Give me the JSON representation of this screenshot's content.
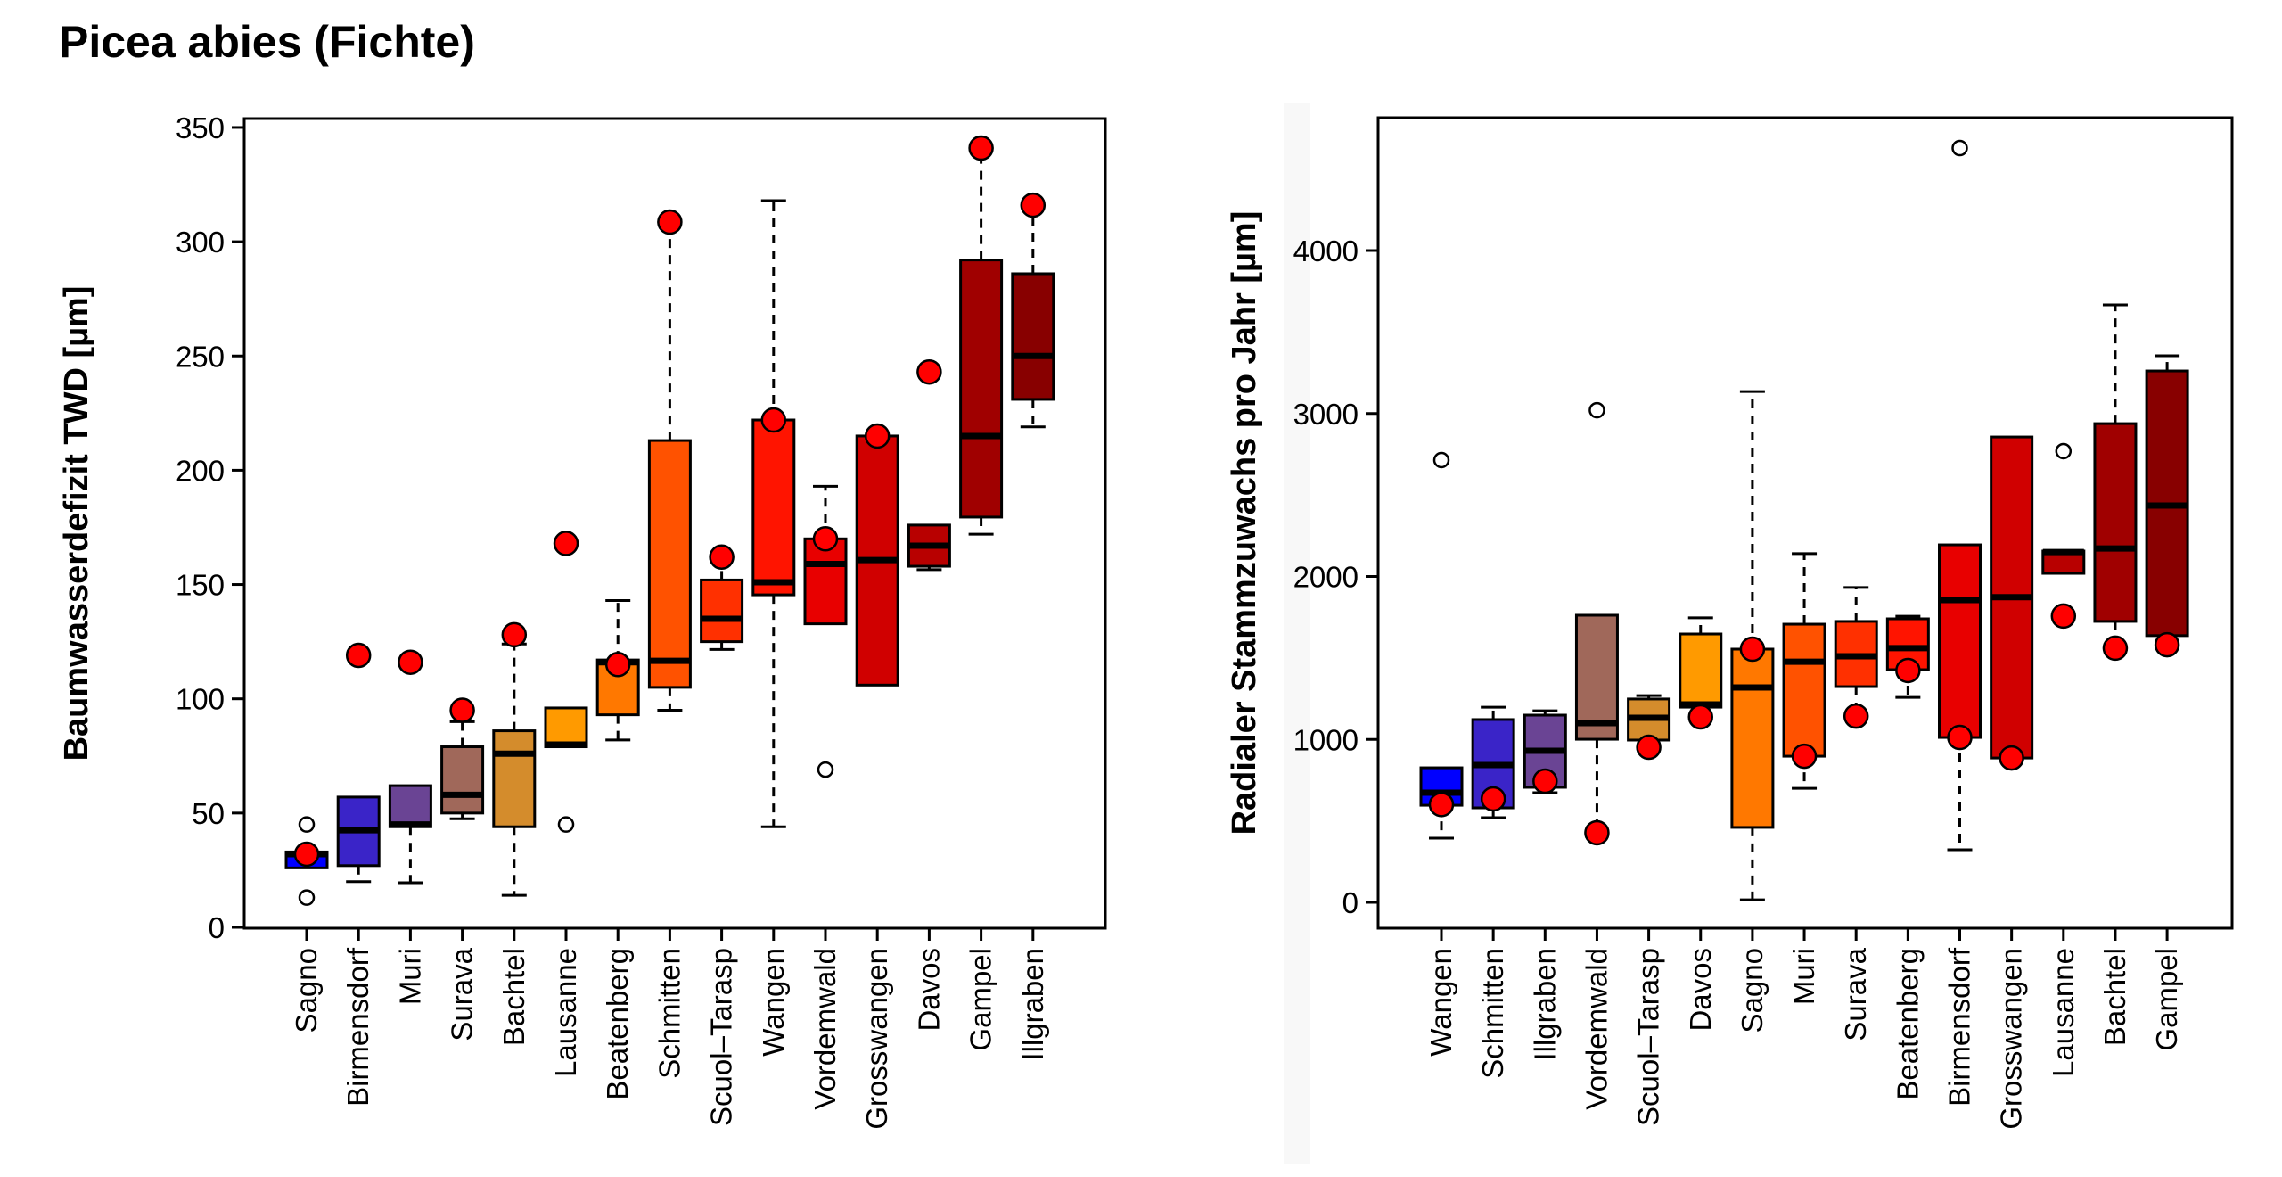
{
  "page_title": "Picea abies (Fichte)",
  "chart_data": [
    {
      "type": "boxplot",
      "title": "",
      "xlabel": "",
      "ylabel": "Baumwasserdefizit TWD [µm]",
      "ylim": [
        0,
        350
      ],
      "yticks": [
        0,
        50,
        100,
        150,
        200,
        250,
        300,
        350
      ],
      "grid": false,
      "legend": "none",
      "categories": [
        "Sagno",
        "Birmensdorf",
        "Muri",
        "Surava",
        "Bachtel",
        "Lausanne",
        "Beatenberg",
        "Schmitten",
        "Scuol–Tarasp",
        "Wangen",
        "Vordemwald",
        "Grosswangen",
        "Davos",
        "Gampel",
        "Illgraben"
      ],
      "colors": [
        "#0000ff",
        "#3a24c8",
        "#6a4494",
        "#a0685a",
        "#d48c2c",
        "#ff9a00",
        "#ff7800",
        "#ff5200",
        "#ff3000",
        "#ff1400",
        "#e80000",
        "#d00000",
        "#b80000",
        "#a00000",
        "#880000"
      ],
      "boxes": [
        {
          "whisker_low": 26,
          "q1": 26,
          "median": 32,
          "q3": 33,
          "whisker_high": 33,
          "outliers": [
            13,
            45
          ],
          "highlight": 32
        },
        {
          "whisker_low": 20,
          "q1": 27,
          "median": 42.5,
          "q3": 57,
          "whisker_high": 57,
          "outliers": [],
          "highlight": 119
        },
        {
          "whisker_low": 19.5,
          "q1": 44,
          "median": 45,
          "q3": 62,
          "whisker_high": 62,
          "outliers": [],
          "highlight": 116
        },
        {
          "whisker_low": 47.5,
          "q1": 50,
          "median": 58,
          "q3": 79,
          "whisker_high": 90,
          "outliers": [],
          "highlight": 95
        },
        {
          "whisker_low": 14,
          "q1": 44,
          "median": 76,
          "q3": 86,
          "whisker_high": 124,
          "outliers": [],
          "highlight": 128
        },
        {
          "whisker_low": 79,
          "q1": 79,
          "median": 80,
          "q3": 96,
          "whisker_high": 96,
          "outliers": [
            45
          ],
          "highlight": 168
        },
        {
          "whisker_low": 82,
          "q1": 93,
          "median": 116,
          "q3": 117,
          "whisker_high": 143,
          "outliers": [],
          "highlight": 115
        },
        {
          "whisker_low": 95,
          "q1": 105,
          "median": 116.6,
          "q3": 213,
          "whisker_high": 308.6,
          "outliers": [],
          "highlight": 308.6
        },
        {
          "whisker_low": 121.6,
          "q1": 125,
          "median": 135,
          "q3": 152,
          "whisker_high": 162,
          "outliers": [],
          "highlight": 162
        },
        {
          "whisker_low": 44,
          "q1": 145.5,
          "median": 151,
          "q3": 222,
          "whisker_high": 318,
          "outliers": [],
          "highlight": 222
        },
        {
          "whisker_low": 132.8,
          "q1": 132.8,
          "median": 159,
          "q3": 170,
          "whisker_high": 193,
          "outliers": [
            69
          ],
          "highlight": 170
        },
        {
          "whisker_low": 106,
          "q1": 106,
          "median": 160.7,
          "q3": 215,
          "whisker_high": 215,
          "outliers": [],
          "highlight": 215
        },
        {
          "whisker_low": 156.5,
          "q1": 158,
          "median": 167,
          "q3": 176,
          "whisker_high": 176,
          "outliers": [],
          "highlight": 243
        },
        {
          "whisker_low": 172,
          "q1": 179.5,
          "median": 215,
          "q3": 292,
          "whisker_high": 341,
          "outliers": [],
          "highlight": 341
        },
        {
          "whisker_low": 219,
          "q1": 231,
          "median": 250,
          "q3": 286,
          "whisker_high": 316,
          "outliers": [],
          "highlight": 316
        }
      ]
    },
    {
      "type": "boxplot",
      "title": "",
      "xlabel": "",
      "ylabel": "Radialer Stammzuwachs pro Jahr [µm]",
      "ylim": [
        -150,
        4830
      ],
      "yticks": [
        0,
        1000,
        2000,
        3000,
        4000
      ],
      "grid": false,
      "legend": "none",
      "categories": [
        "Wangen",
        "Schmitten",
        "Illgraben",
        "Vordemwald",
        "Scuol–Tarasp",
        "Davos",
        "Sagno",
        "Muri",
        "Surava",
        "Beatenberg",
        "Birmensdorf",
        "Grosswangen",
        "Lausanne",
        "Bachtel",
        "Gampel"
      ],
      "colors": [
        "#0000ff",
        "#3a24c8",
        "#6a4494",
        "#a0685a",
        "#d48c2c",
        "#ff9a00",
        "#ff7800",
        "#ff5200",
        "#ff3000",
        "#ff1400",
        "#e80000",
        "#d00000",
        "#b80000",
        "#a00000",
        "#880000"
      ],
      "boxes": [
        {
          "whisker_low": 394,
          "q1": 596,
          "median": 673,
          "q3": 826,
          "whisker_high": 826,
          "outliers": [
            2714
          ],
          "highlight": 600
        },
        {
          "whisker_low": 520,
          "q1": 580,
          "median": 843,
          "q3": 1122,
          "whisker_high": 1198,
          "outliers": [],
          "highlight": 635
        },
        {
          "whisker_low": 673,
          "q1": 706,
          "median": 930,
          "q3": 1149,
          "whisker_high": 1176,
          "outliers": [],
          "highlight": 744
        },
        {
          "whisker_low": 427,
          "q1": 1001,
          "median": 1100,
          "q3": 1762,
          "whisker_high": 1762,
          "outliers": [
            3020
          ],
          "highlight": 427
        },
        {
          "whisker_low": 996,
          "q1": 996,
          "median": 1133,
          "q3": 1248,
          "whisker_high": 1269,
          "outliers": [],
          "highlight": 952
        },
        {
          "whisker_low": 1198,
          "q1": 1198,
          "median": 1215,
          "q3": 1647,
          "whisker_high": 1746,
          "outliers": [],
          "highlight": 1138
        },
        {
          "whisker_low": 16,
          "q1": 460,
          "median": 1319,
          "q3": 1554,
          "whisker_high": 3135,
          "outliers": [],
          "highlight": 1554
        },
        {
          "whisker_low": 700,
          "q1": 897,
          "median": 1477,
          "q3": 1707,
          "whisker_high": 2140,
          "outliers": [],
          "highlight": 897
        },
        {
          "whisker_low": 1143,
          "q1": 1324,
          "median": 1510,
          "q3": 1724,
          "whisker_high": 1932,
          "outliers": [],
          "highlight": 1143
        },
        {
          "whisker_low": 1258,
          "q1": 1428,
          "median": 1560,
          "q3": 1740,
          "whisker_high": 1756,
          "outliers": [],
          "highlight": 1423
        },
        {
          "whisker_low": 323,
          "q1": 1012,
          "median": 1855,
          "q3": 2194,
          "whisker_high": 2194,
          "outliers": [
            4629
          ],
          "highlight": 1012
        },
        {
          "whisker_low": 886,
          "q1": 886,
          "median": 1873,
          "q3": 2856,
          "whisker_high": 2856,
          "outliers": [],
          "highlight": 886
        },
        {
          "whisker_low": 2019,
          "q1": 2019,
          "median": 2150,
          "q3": 2156,
          "whisker_high": 2156,
          "outliers": [
            2769
          ],
          "highlight": 1757
        },
        {
          "whisker_low": 1560,
          "q1": 1724,
          "median": 2172,
          "q3": 2938,
          "whisker_high": 3666,
          "outliers": [],
          "highlight": 1560
        },
        {
          "whisker_low": 1637,
          "q1": 1637,
          "median": 2435,
          "q3": 3261,
          "whisker_high": 3354,
          "outliers": [],
          "highlight": 1581
        }
      ]
    }
  ],
  "highlight_color": "#ff0000"
}
